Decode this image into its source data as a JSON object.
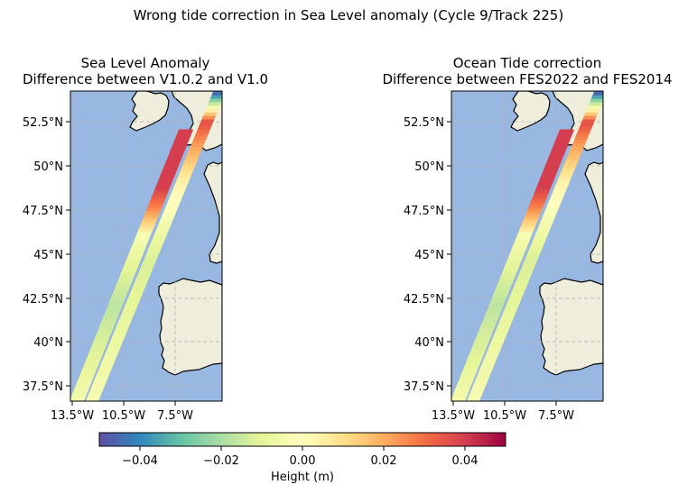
{
  "suptitle": "Wrong tide correction in Sea Level anomaly (Cycle 9/Track 225)",
  "colors": {
    "ocean": "#98b8e2",
    "land": "#efeedc",
    "coast": "#000000",
    "grid": "#b0b0b0"
  },
  "panels": [
    {
      "title_line1": "Sea Level Anomaly",
      "title_line2": "Difference between V1.0.2 and V1.0",
      "lat_ticks": [
        "52.5°N",
        "50°N",
        "47.5°N",
        "45°N",
        "42.5°N",
        "40°N",
        "37.5°N"
      ],
      "lon_ticks": [
        "13.5°W",
        "10.5°W",
        "7.5°W"
      ]
    },
    {
      "title_line1": "Ocean Tide correction",
      "title_line2": "Difference between FES2022 and FES2014",
      "lat_ticks": [
        "52.5°N",
        "50°N",
        "47.5°N",
        "45°N",
        "42.5°N",
        "40°N",
        "37.5°N"
      ],
      "lon_ticks": [
        "13.5°W",
        "10.5°W",
        "7.5°W"
      ]
    }
  ],
  "colorbar": {
    "label": "Height (m)",
    "min": -0.05,
    "max": 0.05,
    "colormap": "Spectral_r",
    "ticks": [
      "−0.04",
      "−0.02",
      "0.00",
      "0.02",
      "0.04"
    ],
    "stops": [
      "#5e4fa2",
      "#3288bd",
      "#66c2a5",
      "#abdda4",
      "#e6f598",
      "#ffffbf",
      "#fee08b",
      "#fdae61",
      "#f46d43",
      "#d53e4f",
      "#9e0142"
    ]
  }
}
